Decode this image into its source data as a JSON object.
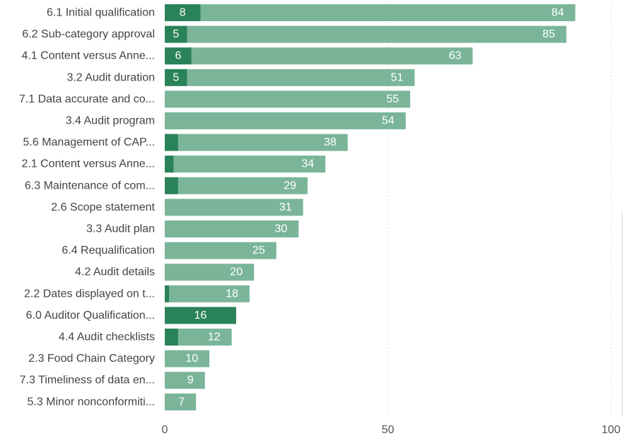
{
  "chart_data": {
    "type": "bar",
    "orientation": "horizontal",
    "stacked": true,
    "categories": [
      "6.1 Initial qualification",
      "6.2 Sub-category approval",
      "4.1 Content versus Anne...",
      "3.2 Audit duration",
      "7.1 Data accurate and co...",
      "3.4 Audit program",
      "5.6 Management of CAP...",
      "2.1 Content versus Anne...",
      "6.3 Maintenance of com...",
      "2.6 Scope statement",
      "3.3 Audit plan",
      "6.4 Requalification",
      "4.2 Audit details",
      "2.2 Dates displayed on t...",
      "6.0 Auditor Qualification...",
      "4.4 Audit checklists",
      "2.3 Food Chain Category",
      "7.3 Timeliness of data en...",
      "5.3 Minor nonconformiti..."
    ],
    "series": [
      {
        "color": "#2a8259",
        "values": [
          8,
          5,
          6,
          5,
          0,
          0,
          3,
          2,
          3,
          0,
          0,
          0,
          0,
          1,
          16,
          3,
          0,
          0,
          0
        ],
        "labels": [
          "8",
          "5",
          "6",
          "5",
          "",
          "",
          "",
          "",
          "",
          "",
          "",
          "",
          "",
          "",
          "16",
          "",
          "",
          "",
          ""
        ]
      },
      {
        "color": "#7ab59a",
        "values": [
          84,
          85,
          63,
          51,
          55,
          54,
          38,
          34,
          29,
          31,
          30,
          25,
          20,
          18,
          0,
          12,
          10,
          9,
          7
        ],
        "labels": [
          "84",
          "85",
          "63",
          "51",
          "55",
          "54",
          "38",
          "34",
          "29",
          "31",
          "30",
          "25",
          "20",
          "18",
          "",
          "12",
          "10",
          "9",
          "7"
        ]
      }
    ],
    "xlim": [
      0,
      100
    ],
    "xticks": [
      "0",
      "50",
      "100"
    ],
    "grid": true,
    "legend": "none"
  }
}
